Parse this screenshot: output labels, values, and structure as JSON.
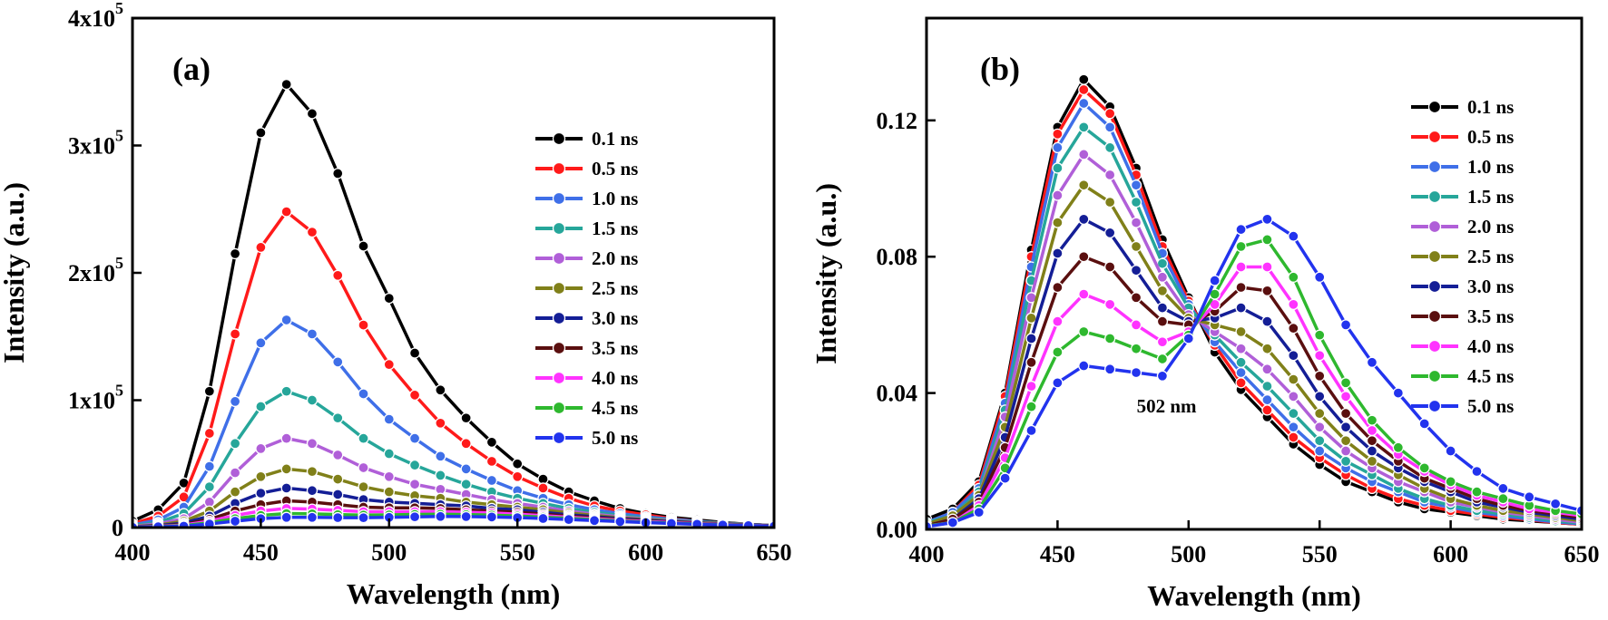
{
  "chart_data": [
    {
      "type": "line",
      "panel_label": "(a)",
      "title": "",
      "xlabel": "Wavelength (nm)",
      "ylabel": "Intensity (a.u.)",
      "xlim": [
        400,
        650
      ],
      "ylim": [
        0,
        400000
      ],
      "xticks": [
        400,
        450,
        500,
        550,
        600,
        650
      ],
      "yticks": [
        {
          "value": 0,
          "label": "0"
        },
        {
          "value": 100000,
          "label": "1x10",
          "exp": "5"
        },
        {
          "value": 200000,
          "label": "2x10",
          "exp": "5"
        },
        {
          "value": 300000,
          "label": "3x10",
          "exp": "5"
        },
        {
          "value": 400000,
          "label": "4x10",
          "exp": "5"
        }
      ],
      "legend_position": "right",
      "x": [
        400,
        410,
        420,
        430,
        440,
        450,
        460,
        470,
        480,
        490,
        500,
        510,
        520,
        530,
        540,
        550,
        560,
        570,
        580,
        590,
        600,
        610,
        620,
        630,
        640,
        650
      ],
      "series": [
        {
          "name": "0.1 ns",
          "color": "#000000",
          "values": [
            5000,
            14000,
            35000,
            107000,
            215000,
            310000,
            348000,
            325000,
            278000,
            221000,
            180000,
            137000,
            108000,
            86000,
            67000,
            50000,
            38000,
            28000,
            21000,
            15000,
            11000,
            8000,
            6000,
            4000,
            2500,
            1500
          ]
        },
        {
          "name": "0.5 ns",
          "color": "#ff1a1a",
          "values": [
            3000,
            9000,
            24000,
            74000,
            152000,
            220000,
            248000,
            232000,
            198000,
            159000,
            128000,
            104000,
            82000,
            66000,
            52000,
            40000,
            31000,
            23000,
            17000,
            13000,
            10000,
            7000,
            5000,
            3500,
            2500,
            1500
          ]
        },
        {
          "name": "1.0 ns",
          "color": "#3f6fe8",
          "values": [
            2000,
            6000,
            16000,
            48000,
            99000,
            145000,
            163000,
            152000,
            130000,
            105000,
            85000,
            70000,
            56000,
            46000,
            37000,
            29000,
            23000,
            18000,
            14000,
            11000,
            8500,
            6500,
            5000,
            3500,
            2500,
            1500
          ]
        },
        {
          "name": "1.5 ns",
          "color": "#26a69a",
          "values": [
            1500,
            4000,
            11000,
            32000,
            66000,
            95000,
            107000,
            100000,
            86000,
            70000,
            58000,
            49000,
            41000,
            34000,
            28000,
            23000,
            19000,
            15000,
            12000,
            9500,
            7500,
            6000,
            4500,
            3500,
            2500,
            1500
          ]
        },
        {
          "name": "2.0 ns",
          "color": "#b05fd8",
          "values": [
            1000,
            3000,
            7000,
            20000,
            43000,
            62000,
            70000,
            66000,
            57000,
            47000,
            40000,
            34000,
            30000,
            26000,
            22000,
            19000,
            16000,
            13000,
            10500,
            8500,
            6800,
            5500,
            4200,
            3200,
            2300,
            1500
          ]
        },
        {
          "name": "2.5 ns",
          "color": "#808019",
          "values": [
            800,
            2000,
            5000,
            13000,
            28000,
            40000,
            46000,
            44000,
            38000,
            32000,
            28000,
            25000,
            23000,
            20000,
            18000,
            16000,
            14000,
            11500,
            9500,
            7700,
            6200,
            5000,
            3900,
            3000,
            2200,
            1500
          ]
        },
        {
          "name": "3.0 ns",
          "color": "#141e96",
          "values": [
            600,
            1500,
            3500,
            9000,
            19000,
            27000,
            31000,
            29000,
            26000,
            22000,
            20000,
            19000,
            18000,
            17000,
            15000,
            14000,
            12000,
            10000,
            8500,
            7000,
            5700,
            4600,
            3600,
            2800,
            2100,
            1400
          ]
        },
        {
          "name": "3.5 ns",
          "color": "#5a0f0f",
          "values": [
            500,
            1200,
            2500,
            6500,
            13000,
            18000,
            21000,
            20000,
            18000,
            16000,
            15500,
            15500,
            15000,
            14000,
            13000,
            12000,
            10500,
            9000,
            7700,
            6400,
            5200,
            4200,
            3300,
            2600,
            1900,
            1300
          ]
        },
        {
          "name": "4.0 ns",
          "color": "#ff33ff",
          "values": [
            400,
            1000,
            2000,
            5000,
            9500,
            13000,
            15000,
            14500,
            13500,
            12500,
            12500,
            12500,
            12500,
            12000,
            11500,
            10500,
            9300,
            8100,
            6900,
            5800,
            4800,
            3900,
            3100,
            2400,
            1800,
            1200
          ]
        },
        {
          "name": "4.5 ns",
          "color": "#2eb82e",
          "values": [
            300,
            800,
            1500,
            3800,
            7000,
            9500,
            11000,
            10800,
            10200,
            9800,
            10000,
            10300,
            10500,
            10200,
            9800,
            9100,
            8200,
            7200,
            6200,
            5200,
            4300,
            3500,
            2800,
            2200,
            1600,
            1100
          ]
        },
        {
          "name": "5.0 ns",
          "color": "#2233ee",
          "values": [
            200,
            600,
            1100,
            2800,
            5000,
            7000,
            8000,
            8000,
            7800,
            7700,
            8000,
            8400,
            8700,
            8600,
            8300,
            7800,
            7100,
            6300,
            5500,
            4700,
            3900,
            3200,
            2600,
            2000,
            1500,
            1000
          ]
        }
      ]
    },
    {
      "type": "line",
      "panel_label": "(b)",
      "title": "",
      "xlabel": "Wavelength (nm)",
      "ylabel": "Intensity (a.u.)",
      "xlim": [
        400,
        650
      ],
      "ylim": [
        0,
        0.15
      ],
      "xticks": [
        400,
        450,
        500,
        550,
        600,
        650
      ],
      "yticks": [
        {
          "value": 0,
          "label": "0.00"
        },
        {
          "value": 0.04,
          "label": "0.04"
        },
        {
          "value": 0.08,
          "label": "0.08"
        },
        {
          "value": 0.12,
          "label": "0.12"
        }
      ],
      "annotations": [
        {
          "text": "502 nm",
          "x": 502,
          "y": 0.059
        }
      ],
      "legend_position": "top-right",
      "x": [
        400,
        410,
        420,
        430,
        440,
        450,
        460,
        470,
        480,
        490,
        500,
        510,
        520,
        530,
        540,
        550,
        560,
        570,
        580,
        590,
        600,
        610,
        620,
        630,
        640,
        650
      ],
      "series": [
        {
          "name": "0.1 ns",
          "color": "#000000",
          "values": [
            0.003,
            0.006,
            0.014,
            0.04,
            0.082,
            0.118,
            0.132,
            0.124,
            0.106,
            0.085,
            0.068,
            0.052,
            0.041,
            0.033,
            0.025,
            0.019,
            0.014,
            0.011,
            0.008,
            0.006,
            0.005,
            0.004,
            0.003,
            0.0025,
            0.002,
            0.0015
          ]
        },
        {
          "name": "0.5 ns",
          "color": "#ff1a1a",
          "values": [
            0.002,
            0.005,
            0.013,
            0.039,
            0.08,
            0.116,
            0.129,
            0.122,
            0.104,
            0.083,
            0.067,
            0.054,
            0.043,
            0.035,
            0.027,
            0.021,
            0.016,
            0.012,
            0.009,
            0.007,
            0.0055,
            0.0045,
            0.0035,
            0.0028,
            0.002,
            0.0015
          ]
        },
        {
          "name": "1.0 ns",
          "color": "#3f6fe8",
          "values": [
            0.002,
            0.005,
            0.012,
            0.037,
            0.077,
            0.112,
            0.125,
            0.118,
            0.101,
            0.081,
            0.066,
            0.055,
            0.046,
            0.038,
            0.03,
            0.023,
            0.018,
            0.014,
            0.011,
            0.008,
            0.0065,
            0.005,
            0.004,
            0.003,
            0.0022,
            0.0016
          ]
        },
        {
          "name": "1.5 ns",
          "color": "#26a69a",
          "values": [
            0.002,
            0.004,
            0.011,
            0.035,
            0.073,
            0.106,
            0.118,
            0.112,
            0.096,
            0.078,
            0.065,
            0.057,
            0.049,
            0.042,
            0.034,
            0.026,
            0.02,
            0.016,
            0.012,
            0.009,
            0.007,
            0.0055,
            0.0045,
            0.0035,
            0.0025,
            0.0018
          ]
        },
        {
          "name": "2.0 ns",
          "color": "#b05fd8",
          "values": [
            0.0015,
            0.004,
            0.01,
            0.033,
            0.068,
            0.098,
            0.11,
            0.104,
            0.09,
            0.074,
            0.063,
            0.058,
            0.053,
            0.047,
            0.039,
            0.03,
            0.023,
            0.018,
            0.014,
            0.011,
            0.008,
            0.0065,
            0.005,
            0.004,
            0.003,
            0.002
          ]
        },
        {
          "name": "2.5 ns",
          "color": "#808019",
          "values": [
            0.0015,
            0.004,
            0.01,
            0.03,
            0.062,
            0.09,
            0.101,
            0.096,
            0.083,
            0.07,
            0.062,
            0.06,
            0.058,
            0.053,
            0.044,
            0.034,
            0.026,
            0.02,
            0.016,
            0.012,
            0.009,
            0.007,
            0.0055,
            0.0045,
            0.0035,
            0.0025
          ]
        },
        {
          "name": "3.0 ns",
          "color": "#141e96",
          "values": [
            0.001,
            0.003,
            0.009,
            0.027,
            0.056,
            0.081,
            0.091,
            0.087,
            0.076,
            0.065,
            0.061,
            0.062,
            0.065,
            0.061,
            0.051,
            0.039,
            0.03,
            0.023,
            0.018,
            0.014,
            0.011,
            0.008,
            0.0065,
            0.005,
            0.004,
            0.003
          ]
        },
        {
          "name": "3.5 ns",
          "color": "#5a0f0f",
          "values": [
            0.001,
            0.003,
            0.008,
            0.024,
            0.049,
            0.071,
            0.08,
            0.077,
            0.068,
            0.061,
            0.06,
            0.064,
            0.071,
            0.07,
            0.059,
            0.045,
            0.034,
            0.026,
            0.02,
            0.015,
            0.012,
            0.009,
            0.007,
            0.0055,
            0.0045,
            0.0035
          ]
        },
        {
          "name": "4.0 ns",
          "color": "#ff33ff",
          "values": [
            0.001,
            0.002,
            0.007,
            0.021,
            0.042,
            0.061,
            0.069,
            0.066,
            0.06,
            0.055,
            0.058,
            0.066,
            0.077,
            0.077,
            0.066,
            0.051,
            0.039,
            0.029,
            0.022,
            0.017,
            0.013,
            0.01,
            0.008,
            0.006,
            0.005,
            0.004
          ]
        },
        {
          "name": "4.5 ns",
          "color": "#2eb82e",
          "values": [
            0.001,
            0.002,
            0.006,
            0.018,
            0.036,
            0.052,
            0.058,
            0.056,
            0.053,
            0.05,
            0.057,
            0.069,
            0.083,
            0.085,
            0.074,
            0.057,
            0.043,
            0.032,
            0.024,
            0.018,
            0.014,
            0.011,
            0.009,
            0.007,
            0.0055,
            0.0045
          ]
        },
        {
          "name": "5.0 ns",
          "color": "#2233ee",
          "values": [
            0.0008,
            0.002,
            0.005,
            0.015,
            0.029,
            0.043,
            0.048,
            0.047,
            0.046,
            0.045,
            0.056,
            0.073,
            0.088,
            0.091,
            0.086,
            0.074,
            0.06,
            0.049,
            0.04,
            0.031,
            0.023,
            0.017,
            0.012,
            0.0095,
            0.0075,
            0.0055
          ]
        }
      ]
    }
  ]
}
